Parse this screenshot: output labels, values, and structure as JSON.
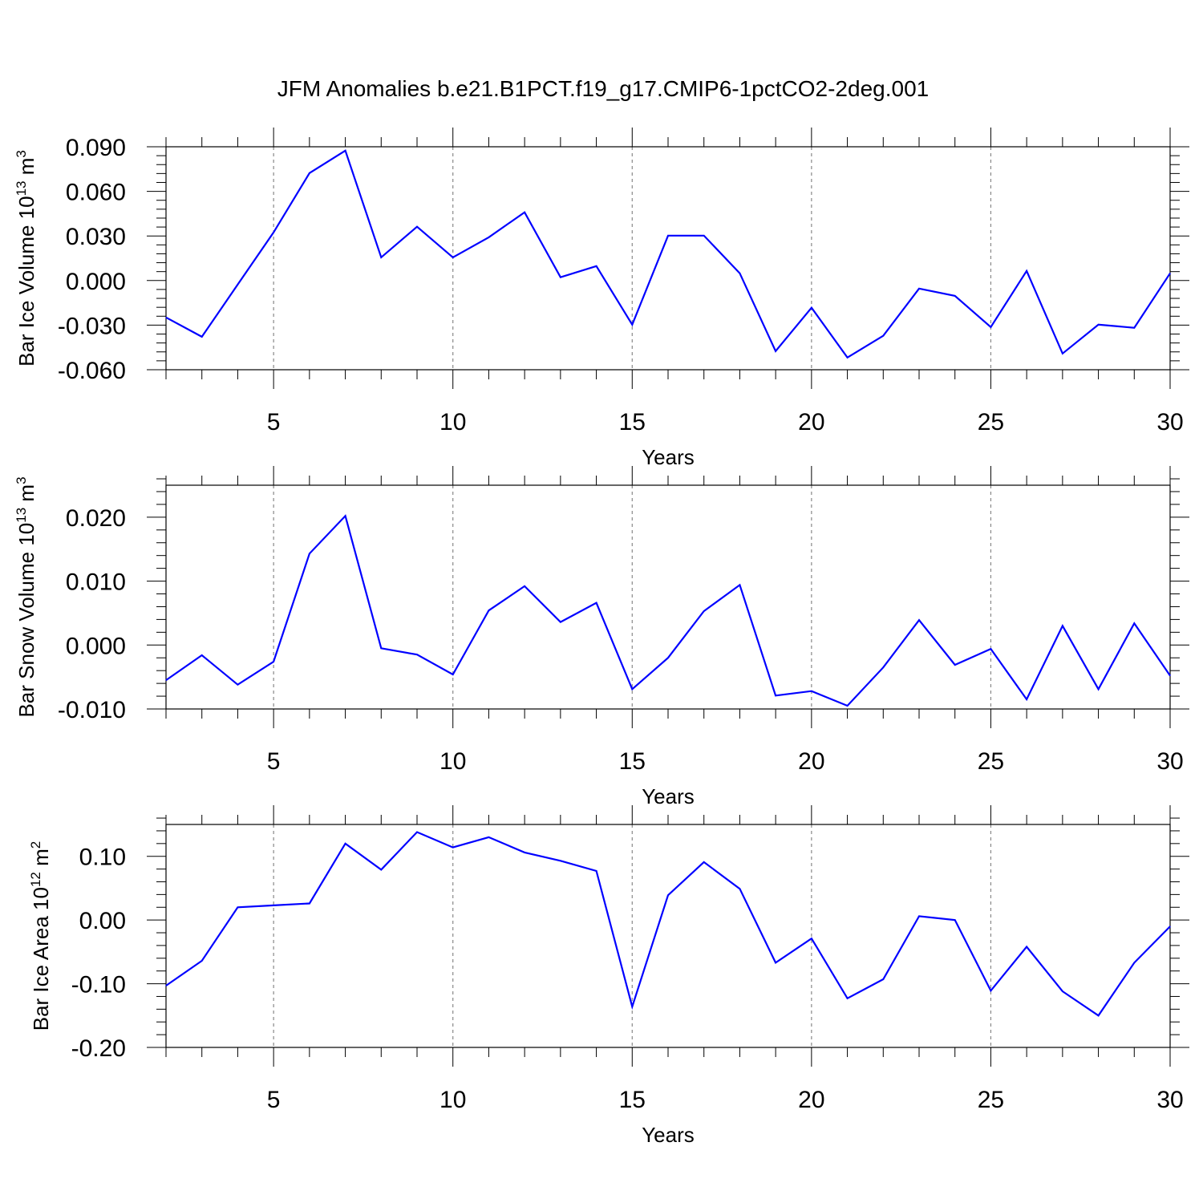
{
  "title": "JFM Anomalies b.e21.B1PCT.f19_g17.CMIP6-1pctCO2-2deg.001",
  "colors": {
    "line": "#0000ff",
    "axis": "#000000",
    "grid": "#888888"
  },
  "chart_data": [
    {
      "type": "line",
      "xlabel": "Years",
      "ylabel": {
        "text": "Bar Ice Volume 10",
        "exp1": "13",
        "unit": " m",
        "exp2": "3"
      },
      "xlim": [
        2,
        30
      ],
      "ylim": [
        -0.06,
        0.09
      ],
      "xticks": [
        5,
        10,
        15,
        20,
        25,
        30
      ],
      "xtick_labels": [
        "5",
        "10",
        "15",
        "20",
        "25",
        "30"
      ],
      "yticks": [
        -0.06,
        -0.03,
        0.0,
        0.03,
        0.06,
        0.09
      ],
      "ytick_labels": [
        "-0.060",
        "-0.030",
        "0.000",
        "0.030",
        "0.060",
        "0.090"
      ],
      "yminor": 0.006,
      "grid": "x-dashed",
      "x": [
        2,
        3,
        4,
        5,
        6,
        7,
        8,
        9,
        10,
        11,
        12,
        13,
        14,
        15,
        16,
        17,
        18,
        19,
        20,
        21,
        22,
        23,
        24,
        25,
        26,
        27,
        28,
        29,
        30
      ],
      "values": [
        -0.0248,
        -0.0378,
        -0.0027,
        0.0324,
        0.0723,
        0.0874,
        0.0156,
        0.0362,
        0.0156,
        0.0291,
        0.0459,
        0.0022,
        0.0097,
        -0.0297,
        0.0302,
        0.0302,
        0.0049,
        -0.0475,
        -0.0183,
        -0.0518,
        -0.0372,
        -0.0054,
        -0.0103,
        -0.0313,
        0.0065,
        -0.0491,
        -0.0297,
        -0.0318,
        0.0049
      ]
    },
    {
      "type": "line",
      "xlabel": "Years",
      "ylabel": {
        "text": "Bar Snow Volume 10",
        "exp1": "13",
        "unit": " m",
        "exp2": "3"
      },
      "xlim": [
        2,
        30
      ],
      "ylim": [
        -0.01,
        0.025
      ],
      "xticks": [
        5,
        10,
        15,
        20,
        25,
        30
      ],
      "xtick_labels": [
        "5",
        "10",
        "15",
        "20",
        "25",
        "30"
      ],
      "yticks": [
        -0.01,
        0.0,
        0.01,
        0.02
      ],
      "ytick_labels": [
        "-0.010",
        "0.000",
        "0.010",
        "0.020"
      ],
      "yminor": 0.002,
      "grid": "x-dashed",
      "x": [
        2,
        3,
        4,
        5,
        6,
        7,
        8,
        9,
        10,
        11,
        12,
        13,
        14,
        15,
        16,
        17,
        18,
        19,
        20,
        21,
        22,
        23,
        24,
        25,
        26,
        27,
        28,
        29,
        30
      ],
      "values": [
        -0.0055,
        -0.0016,
        -0.0062,
        -0.0026,
        0.0143,
        0.0202,
        -0.0005,
        -0.0015,
        -0.0046,
        0.0054,
        0.0092,
        0.0036,
        0.0066,
        -0.0069,
        -0.002,
        0.0053,
        0.0094,
        -0.0079,
        -0.0072,
        -0.0095,
        -0.0035,
        0.0039,
        -0.0031,
        -0.0006,
        -0.0085,
        0.003,
        -0.0069,
        0.0034,
        -0.0048
      ]
    },
    {
      "type": "line",
      "xlabel": "Years",
      "ylabel": {
        "text": "Bar Ice Area 10",
        "exp1": "12",
        "unit": " m",
        "exp2": "2"
      },
      "xlim": [
        2,
        30
      ],
      "ylim": [
        -0.2,
        0.15
      ],
      "xticks": [
        5,
        10,
        15,
        20,
        25,
        30
      ],
      "xtick_labels": [
        "5",
        "10",
        "15",
        "20",
        "25",
        "30"
      ],
      "yticks": [
        -0.2,
        -0.1,
        0.0,
        0.1
      ],
      "ytick_labels": [
        "-0.20",
        "-0.10",
        "0.00",
        "0.10"
      ],
      "yminor": 0.02,
      "grid": "x-dashed",
      "x": [
        2,
        3,
        4,
        5,
        6,
        7,
        8,
        9,
        10,
        11,
        12,
        13,
        14,
        15,
        16,
        17,
        18,
        19,
        20,
        21,
        22,
        23,
        24,
        25,
        26,
        27,
        28,
        29,
        30
      ],
      "values": [
        -0.103,
        -0.064,
        0.02,
        0.023,
        0.026,
        0.12,
        0.079,
        0.138,
        0.114,
        0.13,
        0.106,
        0.093,
        0.077,
        -0.136,
        0.039,
        0.091,
        0.049,
        -0.067,
        -0.029,
        -0.123,
        -0.093,
        0.006,
        0.0,
        -0.111,
        -0.042,
        -0.112,
        -0.15,
        -0.067,
        -0.01
      ]
    }
  ]
}
